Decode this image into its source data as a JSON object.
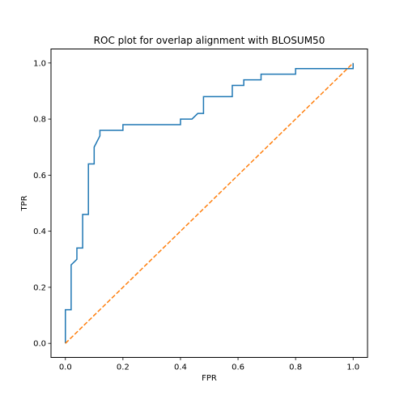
{
  "chart_data": {
    "type": "line",
    "title": "ROC plot for overlap alignment with BLOSUM50",
    "xlabel": "FPR",
    "ylabel": "TPR",
    "xlim": [
      -0.05,
      1.05
    ],
    "ylim": [
      -0.05,
      1.05
    ],
    "xticks": [
      0.0,
      0.2,
      0.4,
      0.6,
      0.8,
      1.0
    ],
    "yticks": [
      0.0,
      0.2,
      0.4,
      0.6,
      0.8,
      1.0
    ],
    "xtick_labels": [
      "0.0",
      "0.2",
      "0.4",
      "0.6",
      "0.8",
      "1.0"
    ],
    "ytick_labels": [
      "0.0",
      "0.2",
      "0.4",
      "0.6",
      "0.8",
      "1.0"
    ],
    "grid": false,
    "series": [
      {
        "style": "solid",
        "color": "#1f77b4",
        "x": [
          0.0,
          0.0,
          0.02,
          0.02,
          0.04,
          0.04,
          0.06,
          0.06,
          0.08,
          0.08,
          0.1,
          0.1,
          0.12,
          0.12,
          0.2,
          0.2,
          0.4,
          0.4,
          0.44,
          0.46,
          0.48,
          0.48,
          0.58,
          0.58,
          0.62,
          0.62,
          0.68,
          0.68,
          0.8,
          0.8,
          1.0,
          1.0
        ],
        "y": [
          0.0,
          0.12,
          0.12,
          0.28,
          0.3,
          0.34,
          0.34,
          0.46,
          0.46,
          0.64,
          0.64,
          0.7,
          0.74,
          0.76,
          0.76,
          0.78,
          0.78,
          0.8,
          0.8,
          0.82,
          0.82,
          0.88,
          0.88,
          0.92,
          0.92,
          0.94,
          0.94,
          0.96,
          0.96,
          0.98,
          0.98,
          1.0
        ]
      },
      {
        "style": "dashed",
        "color": "#ff7f0e",
        "x": [
          0.0,
          1.0
        ],
        "y": [
          0.0,
          1.0
        ]
      }
    ]
  }
}
